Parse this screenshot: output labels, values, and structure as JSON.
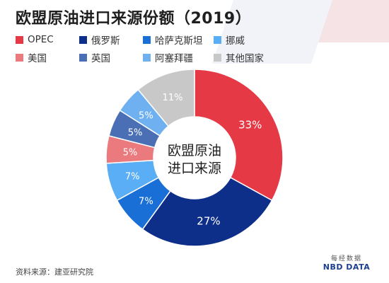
{
  "title": "欧盟原油进口来源份额（2019）",
  "center_label": [
    "欧盟原油",
    "进口来源"
  ],
  "source": "资料来源：建亚研究院",
  "logo": {
    "cn": "每经数据",
    "en": "NBD DATA"
  },
  "chart_data": {
    "type": "pie",
    "donut": true,
    "title": "欧盟原油进口来源份额（2019）",
    "legend_position": "top",
    "slices": [
      {
        "label": "OPEC",
        "value": 33,
        "display": "33%",
        "color": "#e63946"
      },
      {
        "label": "俄罗斯",
        "value": 27,
        "display": "27%",
        "color": "#0d2f8a"
      },
      {
        "label": "哈萨克斯坦",
        "value": 7,
        "display": "7%",
        "color": "#1a6fd6"
      },
      {
        "label": "挪威",
        "value": 7,
        "display": "7%",
        "color": "#5aaef5"
      },
      {
        "label": "美国",
        "value": 5,
        "display": "5%",
        "color": "#ea7a7e"
      },
      {
        "label": "英国",
        "value": 5,
        "display": "5%",
        "color": "#4a6fb5"
      },
      {
        "label": "阿塞拜疆",
        "value": 5,
        "display": "5%",
        "color": "#6fb0f0"
      },
      {
        "label": "其他国家",
        "value": 11,
        "display": "11%",
        "color": "#c8c8c8"
      }
    ]
  }
}
